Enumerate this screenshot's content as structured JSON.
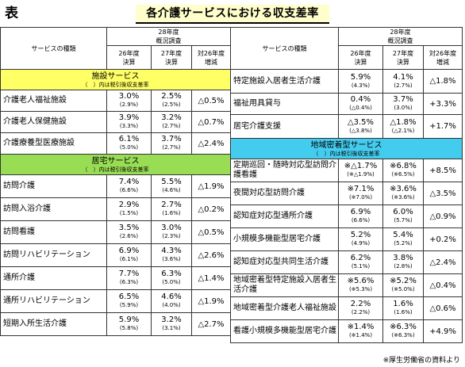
{
  "page": {
    "label": "表",
    "title": "各介護サービスにおける収支差率",
    "footer": "※厚生労働省の資料より"
  },
  "headers": {
    "service_type": "サービスの種類",
    "survey": "28年度\n概況調査",
    "fy26": "26年度\n決算",
    "fy27": "27年度\n決算",
    "vs26": "対26年度\n増減"
  },
  "left": {
    "sections": [
      {
        "title": "施設サービス",
        "note": "（　）内は税引後収支差率",
        "color": "#ffff66",
        "rows": [
          {
            "name": "介護老人福祉施設",
            "fy26": "3.0%",
            "fy26_tax": "(2.9%)",
            "fy27": "2.5%",
            "fy27_tax": "(2.5%)",
            "change": "△0.5%"
          },
          {
            "name": "介護老人保健施設",
            "fy26": "3.9%",
            "fy26_tax": "(3.3%)",
            "fy27": "3.2%",
            "fy27_tax": "(2.7%)",
            "change": "△0.7%"
          },
          {
            "name": "介護療養型医療施設",
            "fy26": "6.1%",
            "fy26_tax": "(5.0%)",
            "fy27": "3.7%",
            "fy27_tax": "(2.7%)",
            "change": "△2.4%"
          }
        ]
      },
      {
        "title": "居宅サービス",
        "note": "（　）内は税引後収支差率",
        "color": "#99dd55",
        "rows": [
          {
            "name": "訪問介護",
            "fy26": "7.4%",
            "fy26_tax": "(6.6%)",
            "fy27": "5.5%",
            "fy27_tax": "(4.6%)",
            "change": "△1.9%"
          },
          {
            "name": "訪問入浴介護",
            "fy26": "2.9%",
            "fy26_tax": "(1.5%)",
            "fy27": "2.7%",
            "fy27_tax": "(1.6%)",
            "change": "△0.2%"
          },
          {
            "name": "訪問看護",
            "fy26": "3.5%",
            "fy26_tax": "(2.6%)",
            "fy27": "3.0%",
            "fy27_tax": "(2.3%)",
            "change": "△0.5%"
          },
          {
            "name": "訪問リハビリテーション",
            "fy26": "6.9%",
            "fy26_tax": "(6.1%)",
            "fy27": "4.3%",
            "fy27_tax": "(3.6%)",
            "change": "△2.6%"
          },
          {
            "name": "通所介護",
            "fy26": "7.7%",
            "fy26_tax": "(6.3%)",
            "fy27": "6.3%",
            "fy27_tax": "(5.0%)",
            "change": "△1.4%"
          },
          {
            "name": "通所リハビリテーション",
            "fy26": "6.5%",
            "fy26_tax": "(5.9%)",
            "fy27": "4.6%",
            "fy27_tax": "(4.0%)",
            "change": "△1.9%"
          },
          {
            "name": "短期入所生活介護",
            "fy26": "5.9%",
            "fy26_tax": "(5.8%)",
            "fy27": "3.2%",
            "fy27_tax": "(3.1%)",
            "change": "△2.7%"
          }
        ]
      }
    ]
  },
  "right": {
    "rows_top": [
      {
        "name": "特定施設入居者生活介護",
        "fy26": "5.9%",
        "fy26_tax": "(4.3%)",
        "fy27": "4.1%",
        "fy27_tax": "(2.7%)",
        "change": "△1.8%"
      },
      {
        "name": "福祉用具貸与",
        "fy26": "0.4%",
        "fy26_tax": "(△0.4%)",
        "fy27": "3.7%",
        "fy27_tax": "(3.0%)",
        "change": "+3.3%"
      },
      {
        "name": "居宅介護支援",
        "fy26": "△3.5%",
        "fy26_tax": "(△3.8%)",
        "fy27": "△1.8%",
        "fy27_tax": "(△2.1%)",
        "change": "+1.7%"
      }
    ],
    "section": {
      "title": "地域密着型サービス",
      "note": "（　）内は税引後収支差率",
      "color": "#44ccee"
    },
    "rows_bottom": [
      {
        "name": "定期巡回・随時対応型訪問介護看護",
        "fy26": "※△1.7%",
        "fy26_tax": "(※△1.9%)",
        "fy27": "※6.8%",
        "fy27_tax": "(※6.5%)",
        "change": "+8.5%"
      },
      {
        "name": "夜間対応型訪問介護",
        "fy26": "※7.1%",
        "fy26_tax": "(※7.0%)",
        "fy27": "※3.6%",
        "fy27_tax": "(※3.6%)",
        "change": "△3.5%"
      },
      {
        "name": "認知症対応型通所介護",
        "fy26": "6.9%",
        "fy26_tax": "(6.6%)",
        "fy27": "6.0%",
        "fy27_tax": "(5.7%)",
        "change": "△0.9%"
      },
      {
        "name": "小規模多機能型居宅介護",
        "fy26": "5.2%",
        "fy26_tax": "(4.9%)",
        "fy27": "5.4%",
        "fy27_tax": "(5.2%)",
        "change": "+0.2%"
      },
      {
        "name": "認知症対応型共同生活介護",
        "fy26": "6.2%",
        "fy26_tax": "(5.1%)",
        "fy27": "3.8%",
        "fy27_tax": "(2.8%)",
        "change": "△2.4%"
      },
      {
        "name": "地域密着型特定施設入居者生活介護",
        "fy26": "※5.6%",
        "fy26_tax": "(※5.3%)",
        "fy27": "※5.2%",
        "fy27_tax": "(※5.0%)",
        "change": "△0.4%"
      },
      {
        "name": "地域密着型介護老人福祉施設",
        "fy26": "2.2%",
        "fy26_tax": "(2.2%)",
        "fy27": "1.6%",
        "fy27_tax": "(1.6%)",
        "change": "△0.6%"
      },
      {
        "name": "看護小規模多機能型居宅介護",
        "fy26": "※1.4%",
        "fy26_tax": "(※1.4%)",
        "fy27": "※6.3%",
        "fy27_tax": "(※6.3%)",
        "change": "+4.9%"
      }
    ]
  }
}
